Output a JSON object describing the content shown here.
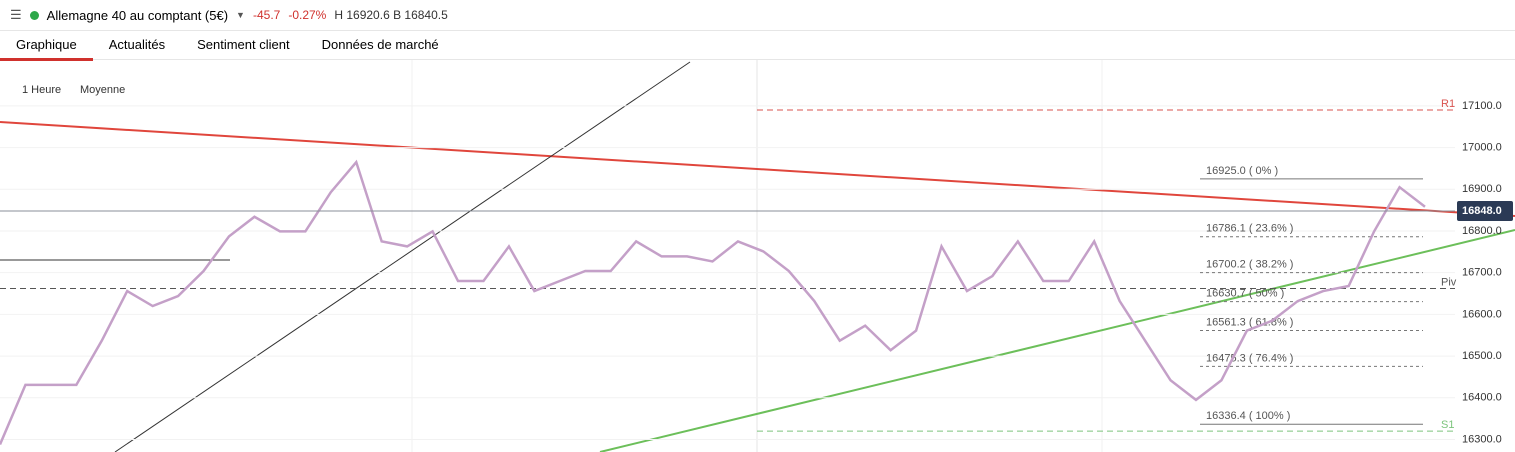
{
  "header": {
    "menu_icon": "☰",
    "instrument": "Allemagne 40 au comptant (5€)",
    "change": "-45.7",
    "change_pct": "-0.27%",
    "high_low": "H 16920.6 B 16840.5"
  },
  "tabs": [
    "Graphique",
    "Actualités",
    "Sentiment client",
    "Données de marché"
  ],
  "chart_data": {
    "type": "line",
    "timeframe": "1 Heure",
    "price_type": "Moyenne",
    "color": "#c4a0c8",
    "values": [
      16288,
      16431,
      16431,
      16431,
      16537,
      16656,
      16620,
      16644,
      16704,
      16787,
      16834,
      16799,
      16799,
      16893,
      16965,
      16775,
      16763,
      16799,
      16680,
      16680,
      16763,
      16656,
      16680,
      16704,
      16704,
      16775,
      16739,
      16739,
      16727,
      16775,
      16751,
      16704,
      16632,
      16537,
      16573,
      16514,
      16561,
      16763,
      16656,
      16692,
      16775,
      16680,
      16680,
      16775,
      16632,
      16537,
      16442,
      16395,
      16442,
      16561,
      16585,
      16632,
      16656,
      16668,
      16799,
      16905,
      16858
    ],
    "ylim": [
      16270,
      17210
    ],
    "yticks": [
      {
        "value": 16300,
        "label": "16300.0"
      },
      {
        "value": 16400,
        "label": "16400.0"
      },
      {
        "value": 16500,
        "label": "16500.0"
      },
      {
        "value": 16600,
        "label": "16600.0"
      },
      {
        "value": 16700,
        "label": "16700.0"
      },
      {
        "value": 16800,
        "label": "16800.0"
      },
      {
        "value": 16900,
        "label": "16900.0"
      },
      {
        "value": 17000,
        "label": "17000.0"
      },
      {
        "value": 17100,
        "label": "17100.0"
      }
    ],
    "current_price": {
      "value": 16848.0,
      "label": "16848.0"
    },
    "fib_levels": [
      {
        "value": 16925.0,
        "label": "16925.0 ( 0% )"
      },
      {
        "value": 16786.1,
        "label": "16786.1 ( 23.6% )"
      },
      {
        "value": 16700.2,
        "label": "16700.2 ( 38.2% )"
      },
      {
        "value": 16630.7,
        "label": "16630.7 ( 50% )"
      },
      {
        "value": 16561.3,
        "label": "16561.3 ( 61.8% )"
      },
      {
        "value": 16475.3,
        "label": "16475.3 ( 76.4% )"
      },
      {
        "value": 16336.4,
        "label": "16336.4 ( 100% )"
      }
    ],
    "pivots": [
      {
        "name": "R1",
        "value": 17090,
        "color": "#d9534f"
      },
      {
        "name": "Piv",
        "value": 16662,
        "color": "#555555"
      },
      {
        "name": "S1",
        "value": 16320,
        "color": "#7cc47c"
      }
    ]
  }
}
